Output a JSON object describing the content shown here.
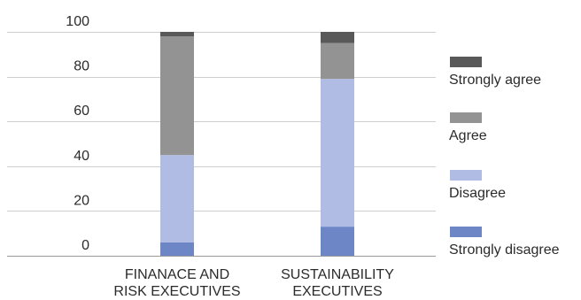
{
  "chart_data": {
    "type": "bar",
    "stacked": true,
    "categories": [
      [
        "FINANACE AND",
        "RISK EXECUTIVES"
      ],
      [
        "SUSTAINABILITY",
        "EXECUTIVES"
      ]
    ],
    "series": [
      {
        "name": "Strongly disagree",
        "color": "#6d87c6",
        "values": [
          6,
          13
        ]
      },
      {
        "name": "Disagree",
        "color": "#b0bce3",
        "values": [
          39,
          66
        ]
      },
      {
        "name": "Agree",
        "color": "#939393",
        "values": [
          53,
          16
        ]
      },
      {
        "name": "Strongly agree",
        "color": "#595959",
        "values": [
          2,
          5
        ]
      }
    ],
    "yticks": [
      0,
      20,
      40,
      60,
      80,
      100
    ],
    "ylim": [
      0,
      100
    ],
    "grid": true,
    "legend": "right",
    "title": "",
    "xlabel": "",
    "ylabel": ""
  }
}
